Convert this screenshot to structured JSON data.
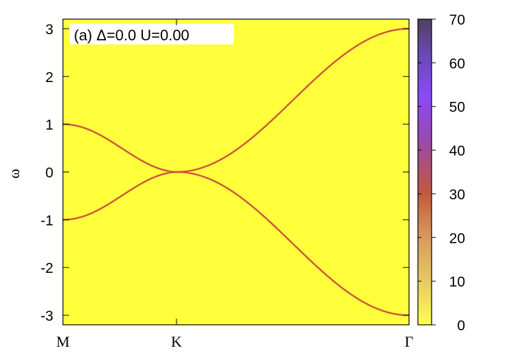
{
  "chart_data": {
    "type": "heatmap",
    "annotation": "(a)  Δ=0.0  U=0.00",
    "ylabel": "ω",
    "xlabel": "",
    "x_ticks": [
      "M",
      "K",
      "Γ"
    ],
    "ylim": [
      -3.2,
      3.2
    ],
    "y_ticks": [
      "-3",
      "-2",
      "-1",
      "0",
      "1",
      "2",
      "3"
    ],
    "colorbar": {
      "range": [
        0,
        70
      ],
      "ticks": [
        "0",
        "10",
        "20",
        "30",
        "40",
        "50",
        "60",
        "70"
      ],
      "colors": [
        "#ffff50",
        "#e8c864",
        "#d89a5e",
        "#c05a3c",
        "#9a4aaa",
        "#8a4af8",
        "#6a4ab4",
        "#504060"
      ]
    },
    "background_color": "#ffff3c",
    "band_color": "#c0392b",
    "series": [
      {
        "x": [
          "M",
          "K",
          "Γ"
        ],
        "values": [
          1.0,
          0.0,
          -3.0
        ]
      },
      {
        "x": [
          "M",
          "K",
          "Γ"
        ],
        "values": [
          -1.0,
          0.0,
          3.0
        ]
      }
    ]
  }
}
